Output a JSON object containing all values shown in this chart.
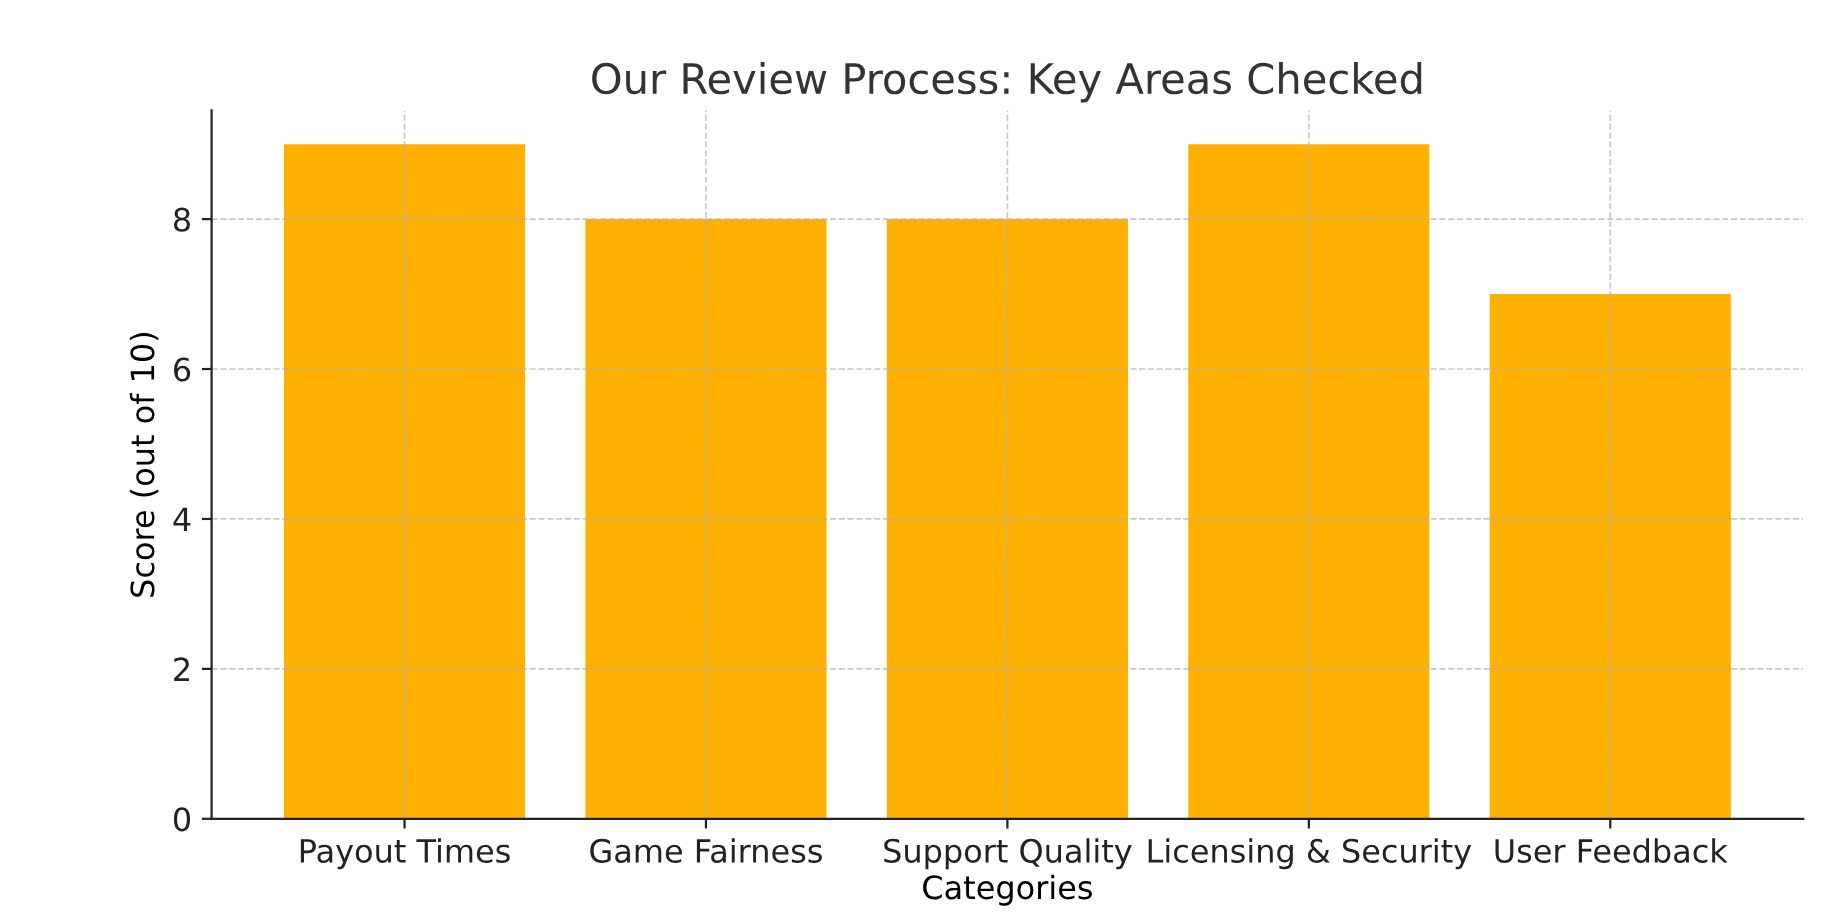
{
  "chart_data": {
    "type": "bar",
    "title": "Our Review Process: Key Areas Checked",
    "xlabel": "Categories",
    "ylabel": "Score (out of 10)",
    "categories": [
      "Payout Times",
      "Game Fairness",
      "Support Quality",
      "Licensing & Security",
      "User Feedback"
    ],
    "values": [
      9,
      8,
      8,
      9,
      7
    ],
    "color": "#ffb000",
    "ylim": [
      0,
      9.45
    ],
    "yticks": [
      0,
      2,
      4,
      6,
      8
    ],
    "grid": true
  }
}
